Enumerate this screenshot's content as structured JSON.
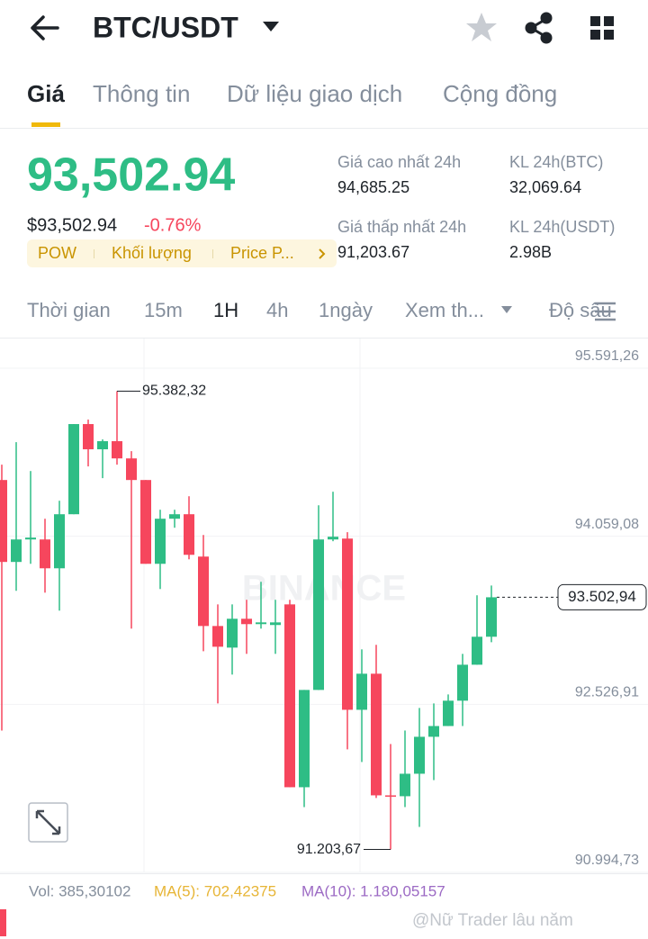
{
  "header": {
    "pair": "BTC/USDT"
  },
  "tabs": [
    "Giá",
    "Thông tin",
    "Dữ liệu giao dịch",
    "Cộng đồng"
  ],
  "price": {
    "last": "93,502.94",
    "usd": "$93,502.94",
    "change": "-0.76%",
    "tags": [
      "POW",
      "Khối lượng",
      "Price P..."
    ]
  },
  "stats": [
    {
      "label": "Giá cao nhất 24h",
      "value": "94,685.25"
    },
    {
      "label": "KL 24h(BTC)",
      "value": "32,069.64"
    },
    {
      "label": "Giá thấp nhất 24h",
      "value": "91,203.67"
    },
    {
      "label": "KL 24h(USDT)",
      "value": "2.98B"
    }
  ],
  "timeframes": [
    "Thời gian",
    "15m",
    "1H",
    "4h",
    "1ngày",
    "Xem th...",
    "Độ sâu"
  ],
  "chart_data": {
    "type": "candlestick",
    "watermark": "BINANCE",
    "up_color": "#2ebd85",
    "down_color": "#f6465d",
    "grid": true,
    "ylim": [
      90994.73,
      95591.26
    ],
    "yticks": [
      {
        "value": 95591.26,
        "label": "95.591,26"
      },
      {
        "value": 94059.08,
        "label": "94.059,08"
      },
      {
        "value": 92526.91,
        "label": "92.526,91"
      },
      {
        "value": 90994.73,
        "label": "90.994,73"
      }
    ],
    "annotations": [
      {
        "value": 95382.32,
        "label": "95.382,32"
      },
      {
        "value": 91203.67,
        "label": "91.203,67"
      },
      {
        "value": 93502.94,
        "label": "93.502,94"
      }
    ],
    "candles": [
      {
        "open": 94572,
        "high": 94712,
        "low": 92288,
        "close": 93825
      },
      {
        "open": 93825,
        "high": 94917,
        "low": 93562,
        "close": 94030
      },
      {
        "open": 94030,
        "high": 94654,
        "low": 93808,
        "close": 94047
      },
      {
        "open": 94030,
        "high": 94219,
        "low": 93545,
        "close": 93767
      },
      {
        "open": 93767,
        "high": 94383,
        "low": 93381,
        "close": 94260
      },
      {
        "open": 94260,
        "high": 95082,
        "low": 94260,
        "close": 95082
      },
      {
        "open": 95082,
        "high": 95123,
        "low": 94696,
        "close": 94852
      },
      {
        "open": 94852,
        "high": 94942,
        "low": 94589,
        "close": 94926
      },
      {
        "open": 94926,
        "high": 95382.32,
        "low": 94712,
        "close": 94769
      },
      {
        "open": 94769,
        "high": 94835,
        "low": 93217,
        "close": 94572
      },
      {
        "open": 94572,
        "high": 94572,
        "low": 93808,
        "close": 93808
      },
      {
        "open": 93808,
        "high": 94301,
        "low": 93578,
        "close": 94219
      },
      {
        "open": 94219,
        "high": 94301,
        "low": 94137,
        "close": 94260
      },
      {
        "open": 94260,
        "high": 94424,
        "low": 93849,
        "close": 93890
      },
      {
        "open": 93874,
        "high": 94071,
        "low": 93011,
        "close": 93241
      },
      {
        "open": 93241,
        "high": 93438,
        "low": 92535,
        "close": 93052
      },
      {
        "open": 93044,
        "high": 93438,
        "low": 92798,
        "close": 93307
      },
      {
        "open": 93307,
        "high": 93480,
        "low": 92987,
        "close": 93258
      },
      {
        "open": 93258,
        "high": 93644,
        "low": 93217,
        "close": 93274
      },
      {
        "open": 93250,
        "high": 93480,
        "low": 92987,
        "close": 93274
      },
      {
        "open": 93438,
        "high": 93480,
        "low": 91771,
        "close": 91771
      },
      {
        "open": 91771,
        "high": 92658,
        "low": 91590,
        "close": 92658
      },
      {
        "open": 92658,
        "high": 94342,
        "low": 92658,
        "close": 94030
      },
      {
        "open": 94030,
        "high": 94465,
        "low": 94014,
        "close": 94055
      },
      {
        "open": 94038,
        "high": 94096,
        "low": 92116,
        "close": 92477
      },
      {
        "open": 92477,
        "high": 93028,
        "low": 92001,
        "close": 92806
      },
      {
        "open": 92806,
        "high": 93069,
        "low": 91673,
        "close": 91697
      },
      {
        "open": 91697,
        "high": 92165,
        "low": 91203.67,
        "close": 91689
      },
      {
        "open": 91689,
        "high": 92288,
        "low": 91590,
        "close": 91894
      },
      {
        "open": 91894,
        "high": 92494,
        "low": 91409,
        "close": 92231
      },
      {
        "open": 92231,
        "high": 92535,
        "low": 91836,
        "close": 92329
      },
      {
        "open": 92329,
        "high": 92617,
        "low": 92329,
        "close": 92560
      },
      {
        "open": 92560,
        "high": 92987,
        "low": 92329,
        "close": 92888
      },
      {
        "open": 92888,
        "high": 93521,
        "low": 92888,
        "close": 93143
      },
      {
        "open": 93143,
        "high": 93610,
        "low": 93093,
        "close": 93502.94
      }
    ]
  },
  "indicators": {
    "vol": "Vol: 385,30102",
    "ma5": "MA(5): 702,42375",
    "ma10": "MA(10): 1.180,05157"
  },
  "watermark": "@Nữ Trader lâu năm"
}
